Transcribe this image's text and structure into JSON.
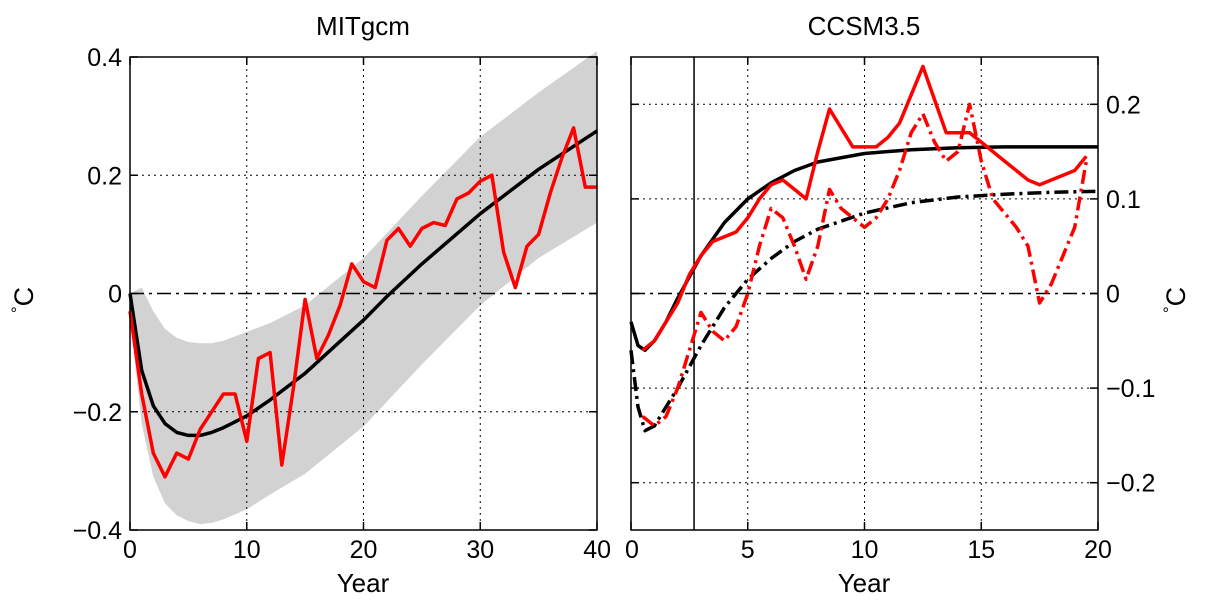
{
  "chart_data": [
    {
      "type": "line",
      "title": "MITgcm",
      "xlabel": "Year",
      "ylabel": "°C",
      "ylabel_superscript": "°",
      "ylabel_unit": "C",
      "xlim": [
        0,
        40
      ],
      "ylim": [
        -0.4,
        0.4
      ],
      "xticks": [
        0,
        10,
        20,
        30,
        40
      ],
      "yticks": [
        -0.4,
        -0.2,
        0,
        0.2,
        0.4
      ],
      "xtick_labels": [
        "0",
        "10",
        "20",
        "30",
        "40"
      ],
      "ytick_labels": [
        "−0.4",
        "−0.2",
        "0",
        "0.2",
        "0.4"
      ],
      "grid": true,
      "yaxis_side": "left",
      "zero_line": {
        "y": 0,
        "style": "dash-dot",
        "color": "#000000"
      },
      "band": {
        "color": "#d2d2d2",
        "x": [
          0,
          1,
          2,
          3,
          4,
          5,
          6,
          7,
          8,
          10,
          12,
          15,
          20,
          25,
          30,
          35,
          40
        ],
        "lower": [
          -0.04,
          -0.22,
          -0.31,
          -0.355,
          -0.375,
          -0.385,
          -0.39,
          -0.388,
          -0.382,
          -0.365,
          -0.34,
          -0.305,
          -0.225,
          -0.12,
          -0.02,
          0.06,
          0.12
        ],
        "upper": [
          0.0,
          0.01,
          -0.03,
          -0.06,
          -0.075,
          -0.082,
          -0.084,
          -0.084,
          -0.08,
          -0.065,
          -0.05,
          -0.02,
          0.06,
          0.165,
          0.265,
          0.34,
          0.41
        ]
      },
      "series": [
        {
          "color": "#000000",
          "style": "solid",
          "x": [
            0,
            1,
            2,
            3,
            4,
            5,
            6,
            7,
            8,
            10,
            12,
            15,
            20,
            22,
            25,
            30,
            35,
            40
          ],
          "y": [
            0,
            -0.13,
            -0.19,
            -0.22,
            -0.235,
            -0.24,
            -0.24,
            -0.235,
            -0.227,
            -0.207,
            -0.18,
            -0.135,
            -0.045,
            -0.005,
            0.05,
            0.135,
            0.21,
            0.275
          ]
        },
        {
          "color": "#ff0000",
          "style": "solid",
          "x": [
            0,
            1,
            2,
            3,
            4,
            5,
            6,
            7,
            8,
            9,
            10,
            11,
            12,
            13,
            14,
            15,
            16,
            17,
            18,
            19,
            20,
            21,
            22,
            23,
            24,
            25,
            26,
            27,
            28,
            29,
            30,
            31,
            32,
            33,
            34,
            35,
            36,
            37,
            38,
            39,
            40
          ],
          "y": [
            -0.03,
            -0.17,
            -0.27,
            -0.31,
            -0.27,
            -0.28,
            -0.23,
            -0.2,
            -0.17,
            -0.17,
            -0.25,
            -0.11,
            -0.1,
            -0.29,
            -0.16,
            -0.01,
            -0.11,
            -0.07,
            -0.02,
            0.05,
            0.02,
            0.01,
            0.09,
            0.11,
            0.08,
            0.11,
            0.12,
            0.115,
            0.16,
            0.17,
            0.19,
            0.2,
            0.07,
            0.01,
            0.08,
            0.1,
            0.17,
            0.23,
            0.28,
            0.18,
            0.18
          ]
        }
      ]
    },
    {
      "type": "line",
      "title": "CCSM3.5",
      "xlabel": "Year",
      "ylabel": "°C",
      "ylabel_superscript": "°",
      "ylabel_unit": "C",
      "xlim": [
        0,
        20
      ],
      "ylim": [
        -0.25,
        0.25
      ],
      "xticks": [
        0,
        5,
        10,
        15,
        20
      ],
      "yticks": [
        -0.2,
        -0.1,
        0,
        0.1,
        0.2
      ],
      "xtick_labels": [
        "0",
        "5",
        "10",
        "15",
        "20"
      ],
      "ytick_labels": [
        "−0.2",
        "−0.1",
        "0",
        "0.1",
        "0.2"
      ],
      "grid": true,
      "yaxis_side": "right",
      "zero_line": {
        "y": 0,
        "style": "dash-dot",
        "color": "#000000"
      },
      "vline": {
        "x": 2.7,
        "color": "#000000"
      },
      "series": [
        {
          "color": "#000000",
          "style": "solid",
          "x": [
            0,
            0.3,
            0.6,
            1.0,
            1.5,
            2.0,
            3.0,
            4.0,
            5.0,
            6.0,
            7.0,
            8.0,
            10.0,
            12.0,
            14.0,
            16.0,
            18.0,
            20.0
          ],
          "y": [
            -0.03,
            -0.055,
            -0.06,
            -0.05,
            -0.03,
            -0.005,
            0.04,
            0.075,
            0.1,
            0.117,
            0.13,
            0.139,
            0.148,
            0.152,
            0.154,
            0.155,
            0.155,
            0.155
          ]
        },
        {
          "color": "#000000",
          "style": "dash-dot",
          "x": [
            0,
            0.3,
            0.6,
            1.0,
            1.5,
            2.0,
            3.0,
            4.0,
            5.0,
            6.0,
            7.0,
            8.0,
            10.0,
            12.0,
            14.0,
            16.0,
            18.0,
            20.0
          ],
          "y": [
            -0.06,
            -0.12,
            -0.145,
            -0.14,
            -0.12,
            -0.1,
            -0.055,
            -0.015,
            0.015,
            0.037,
            0.055,
            0.068,
            0.085,
            0.096,
            0.102,
            0.105,
            0.107,
            0.108
          ]
        },
        {
          "color": "#ff0000",
          "style": "solid",
          "x": [
            0.5,
            1.0,
            1.5,
            2.0,
            2.5,
            3.0,
            3.5,
            4.0,
            4.5,
            5.0,
            5.5,
            6.0,
            6.5,
            7.0,
            7.5,
            8.0,
            8.5,
            9.0,
            9.5,
            10.0,
            10.5,
            11.0,
            11.5,
            12.0,
            12.5,
            13.0,
            13.5,
            14.0,
            14.5,
            15.0,
            15.5,
            16.0,
            16.5,
            17.0,
            17.5,
            18.0,
            18.5,
            19.0,
            19.5
          ],
          "y": [
            -0.06,
            -0.05,
            -0.03,
            -0.01,
            0.02,
            0.04,
            0.055,
            0.06,
            0.065,
            0.08,
            0.1,
            0.115,
            0.12,
            0.11,
            0.1,
            0.15,
            0.195,
            0.175,
            0.155,
            0.155,
            0.155,
            0.165,
            0.18,
            0.21,
            0.24,
            0.205,
            0.17,
            0.17,
            0.17,
            0.16,
            0.15,
            0.14,
            0.13,
            0.12,
            0.115,
            0.12,
            0.125,
            0.13,
            0.145
          ]
        },
        {
          "color": "#ff0000",
          "style": "dash-dot",
          "x": [
            0.5,
            1.0,
            1.5,
            2.0,
            2.5,
            3.0,
            3.5,
            4.0,
            4.5,
            5.0,
            5.5,
            6.0,
            6.5,
            7.0,
            7.5,
            8.0,
            8.5,
            9.0,
            9.5,
            10.0,
            10.5,
            11.0,
            11.5,
            12.0,
            12.5,
            13.0,
            13.5,
            14.0,
            14.5,
            15.0,
            15.5,
            16.0,
            16.5,
            17.0,
            17.5,
            18.0,
            18.5,
            19.0,
            19.5
          ],
          "y": [
            -0.13,
            -0.14,
            -0.13,
            -0.1,
            -0.06,
            -0.02,
            -0.04,
            -0.05,
            -0.035,
            0.0,
            0.05,
            0.09,
            0.08,
            0.05,
            0.015,
            0.05,
            0.11,
            0.09,
            0.08,
            0.07,
            0.08,
            0.1,
            0.13,
            0.17,
            0.19,
            0.16,
            0.14,
            0.15,
            0.2,
            0.14,
            0.1,
            0.085,
            0.07,
            0.05,
            -0.01,
            0.01,
            0.04,
            0.07,
            0.14
          ]
        }
      ]
    }
  ]
}
